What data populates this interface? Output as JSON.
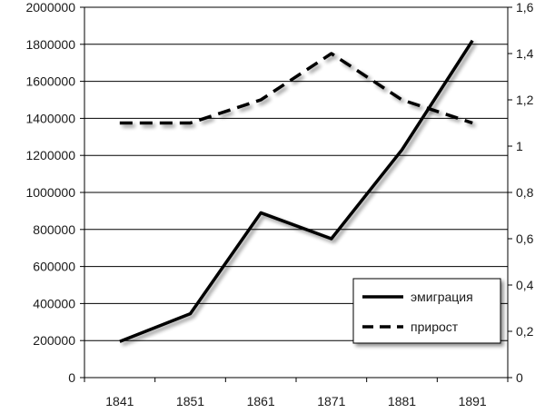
{
  "chart_data": {
    "type": "line",
    "title": "",
    "x": [
      "1841",
      "1851",
      "1861",
      "1871",
      "1881",
      "1891"
    ],
    "left_axis": {
      "ylim": [
        0,
        2000000
      ],
      "ticks": [
        "0",
        "200000",
        "400000",
        "600000",
        "800000",
        "1000000",
        "1200000",
        "1400000",
        "1600000",
        "1800000",
        "2000000"
      ]
    },
    "right_axis": {
      "ylim": [
        0,
        1.6
      ],
      "ticks": [
        "0",
        "0,2",
        "0,4",
        "0,6",
        "0,8",
        "1",
        "1,2",
        "1,4",
        "1,6"
      ]
    },
    "series": [
      {
        "name": "эмиграция",
        "axis": "left",
        "style": "solid",
        "color": "#000000",
        "values": [
          195000,
          345000,
          890000,
          750000,
          1230000,
          1820000
        ]
      },
      {
        "name": "прирост",
        "axis": "right",
        "style": "dashed",
        "color": "#000000",
        "values": [
          1.1,
          1.1,
          1.2,
          1.4,
          1.2,
          1.1
        ]
      }
    ],
    "grid": true,
    "legend": "bottom-right"
  }
}
